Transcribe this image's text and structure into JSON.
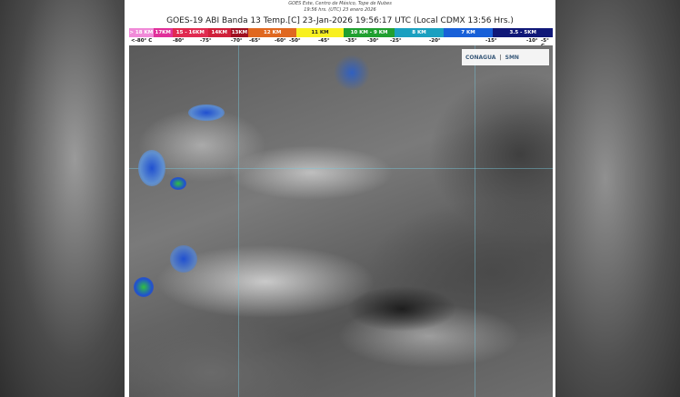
{
  "header": {
    "subtitle1": "GOES Este, Centro de México, Tope de Nubes",
    "subtitle2": "19:56 hrs. (UTC) 23 enero 2026",
    "title": "GOES-19 ABI Banda 13 Temp.[C] 23-Jan-2026 19:56:17 UTC (Local CDMX  13:56 Hrs.)"
  },
  "legend": [
    {
      "label": "> 18 KM",
      "color": "#f08ad8"
    },
    {
      "label": "17KM",
      "color": "#e0309a"
    },
    {
      "label": "15 - 16KM",
      "color": "#e02a50"
    },
    {
      "label": "14KM",
      "color": "#d0203a"
    },
    {
      "label": "13KM",
      "color": "#a01020"
    },
    {
      "label": "12 KM",
      "color": "#e06820"
    },
    {
      "label": "11 KM",
      "color": "#f8f020"
    },
    {
      "label": "10 KM - 9 KM",
      "color": "#20a030"
    },
    {
      "label": "8 KM",
      "color": "#1aa0c0"
    },
    {
      "label": "7 KM",
      "color": "#1860d8"
    },
    {
      "label": "3.5 - 5KM",
      "color": "#101878"
    }
  ],
  "temperatures": [
    "<-80° C",
    "-80°",
    "-75°",
    "-70°",
    "-65°",
    "-60°",
    "-50°",
    "-45°",
    "-35°",
    "-30°",
    "-25°",
    "-20°",
    "-15°",
    "-10°",
    "-5° C"
  ],
  "logos": {
    "conagua": "CONAGUA",
    "smn": "SMN"
  }
}
